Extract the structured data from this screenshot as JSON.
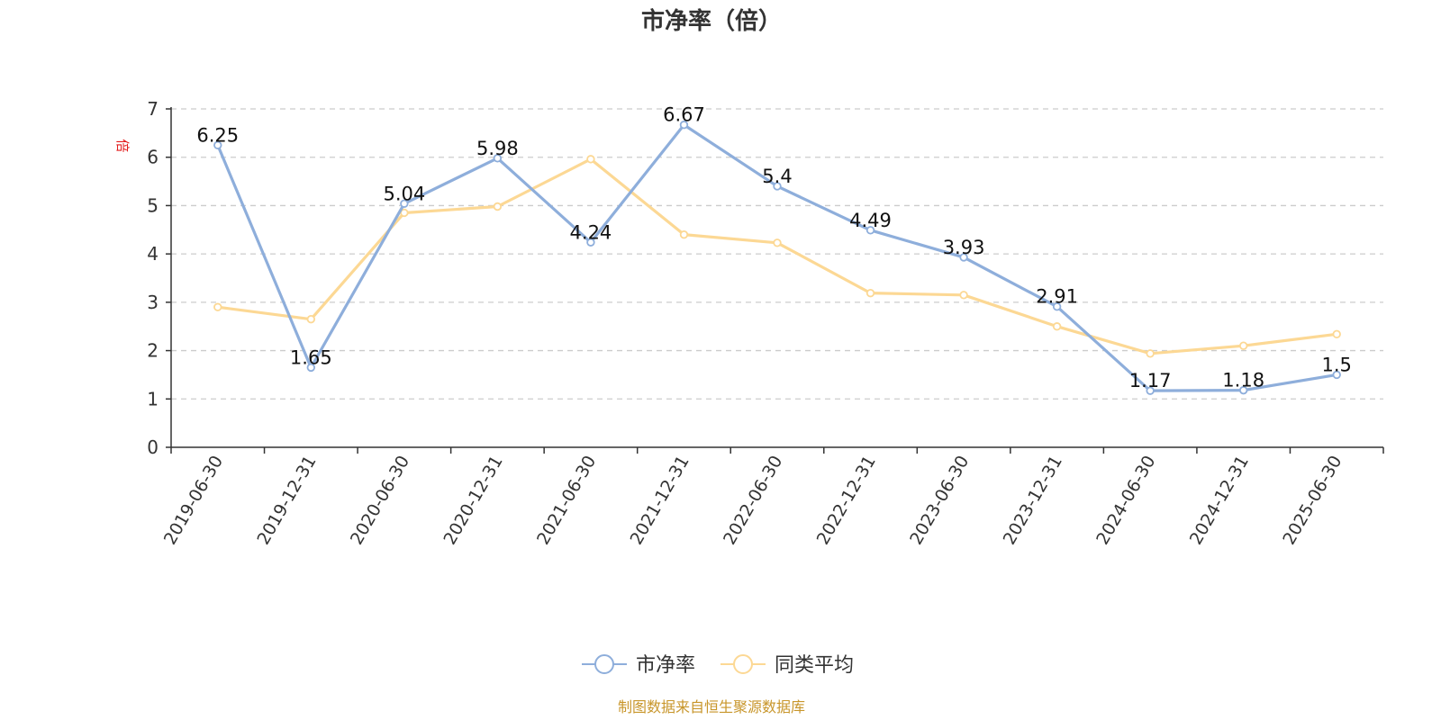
{
  "chart_data": {
    "type": "line",
    "title": "市净率（倍）",
    "y_unit": "倍",
    "ylim": [
      0,
      7
    ],
    "yticks": [
      0,
      1,
      2,
      3,
      4,
      5,
      6,
      7
    ],
    "grid": true,
    "legend_position": "bottom",
    "categories": [
      "2019-06-30",
      "2019-12-31",
      "2020-06-30",
      "2020-12-31",
      "2021-06-30",
      "2021-12-31",
      "2022-06-30",
      "2022-12-31",
      "2023-06-30",
      "2023-12-31",
      "2024-06-30",
      "2024-12-31",
      "2025-06-30"
    ],
    "series": [
      {
        "name": "市净率",
        "color": "#8eaedb",
        "values": [
          6.25,
          1.65,
          5.04,
          5.98,
          4.24,
          6.67,
          5.4,
          4.49,
          3.93,
          2.91,
          1.17,
          1.18,
          1.5
        ],
        "labels": [
          "6.25",
          "1.65",
          "5.04",
          "5.98",
          "4.24",
          "6.67",
          "5.4",
          "4.49",
          "3.93",
          "2.91",
          "1.17",
          "1.18",
          "1.5"
        ]
      },
      {
        "name": "同类平均",
        "color": "#fcd894",
        "values": [
          2.9,
          2.65,
          4.85,
          4.98,
          5.96,
          4.4,
          4.23,
          3.19,
          3.15,
          2.5,
          1.94,
          2.1,
          2.34
        ]
      }
    ],
    "source": "制图数据来自恒生聚源数据库"
  }
}
